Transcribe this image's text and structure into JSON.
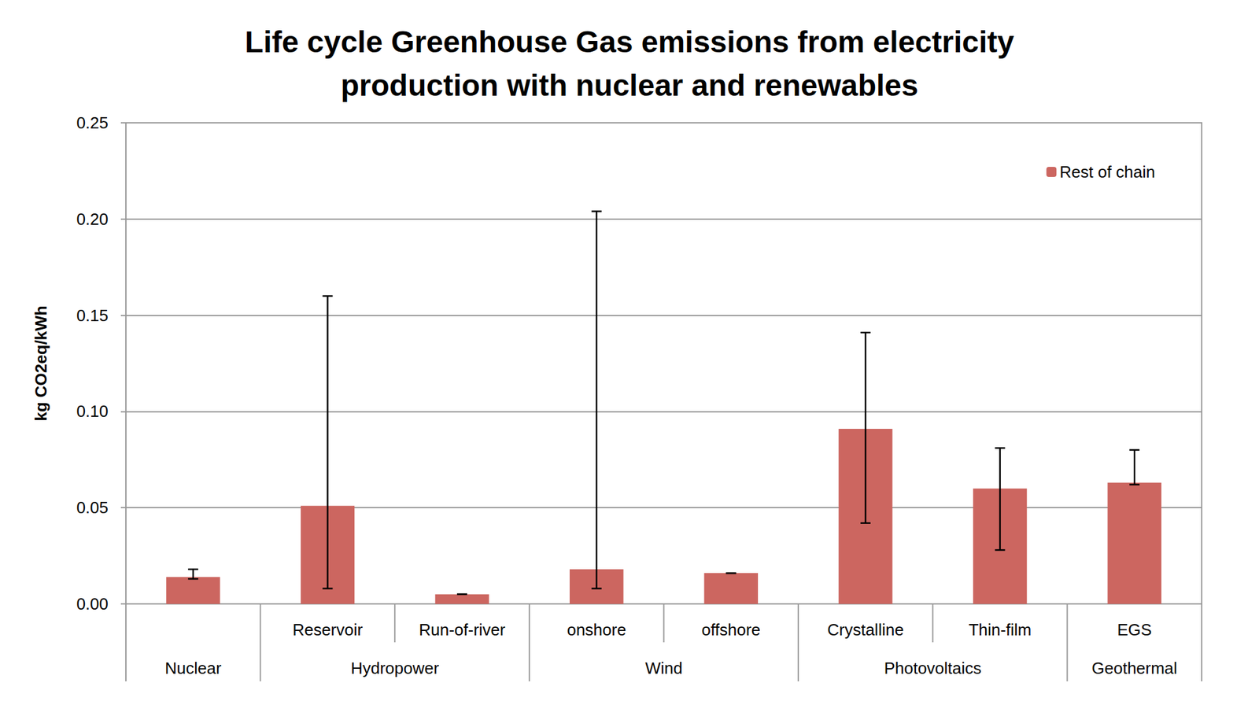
{
  "chart_data": {
    "type": "bar",
    "title": "Life cycle Greenhouse Gas emissions from electricity\nproduction with nuclear and renewables",
    "y_label": "kg CO2eq/kWh",
    "categories": [
      null,
      "Reservoir",
      "Run-of-river",
      "onshore",
      "offshore",
      "Crystalline",
      "Thin-film",
      "EGS"
    ],
    "groups": [
      "Nuclear",
      "Hydropower",
      "Hydropower",
      "Wind",
      "Wind",
      "Photovoltaics",
      "Photovoltaics",
      "Geothermal"
    ],
    "series": [
      {
        "name": "Rest of chain",
        "color": "#cc6660",
        "values": [
          0.014,
          0.051,
          0.005,
          0.018,
          0.016,
          0.091,
          0.06,
          0.063
        ],
        "error_low": [
          0.013,
          0.008,
          0.005,
          0.008,
          0.016,
          0.042,
          0.028,
          0.062
        ],
        "error_high": [
          0.018,
          0.16,
          0.005,
          0.204,
          0.016,
          0.141,
          0.081,
          0.08
        ]
      }
    ],
    "ylim": [
      0,
      0.25
    ],
    "yticks": [
      {
        "value": 0,
        "label": "0.00"
      },
      {
        "value": 0.05,
        "label": "0.05"
      },
      {
        "value": 0.1,
        "label": "0.10"
      },
      {
        "value": 0.15,
        "label": "0.15"
      },
      {
        "value": 0.2,
        "label": "0.20"
      },
      {
        "value": 0.25,
        "label": "0.25"
      }
    ],
    "grid": true,
    "legend": "upper right"
  }
}
